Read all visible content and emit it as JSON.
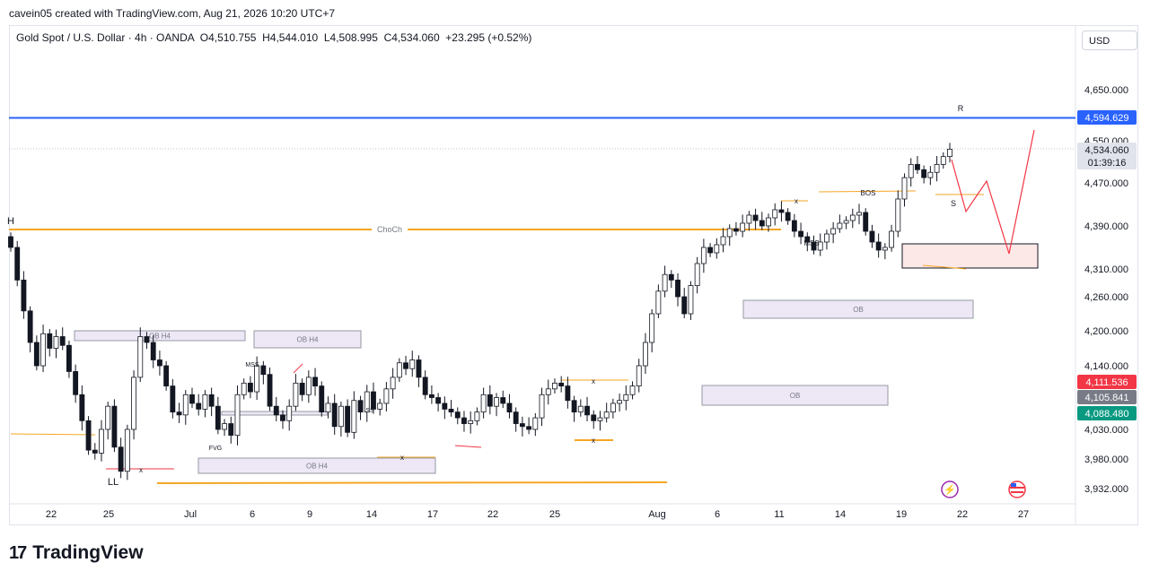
{
  "header": {
    "caption": "cavein05 created with TradingView.com, Aug 21, 2026 10:20 UTC+7",
    "legend": "Gold Spot / U.S. Dollar · 4h · OANDA  O4,510.755  H4,544.010  L4,508.995  C4,534.060  +23.295 (+0.52%)",
    "currency": "USD"
  },
  "footer": {
    "brand": "TradingView"
  },
  "chart_data": {
    "type": "candlestick",
    "title": "Gold Spot / U.S. Dollar · 4h · OANDA",
    "ohlc": {
      "open": 4510.755,
      "high": 4544.01,
      "low": 4508.995,
      "close": 4534.06,
      "change": "+23.295 (+0.52%)"
    },
    "y_ticks": [
      "4,650.000",
      "4,550.000",
      "4,470.000",
      "4,390.000",
      "4,310.000",
      "4,260.000",
      "4,200.000",
      "4,140.000",
      "4,030.000",
      "3,980.000",
      "3,932.000"
    ],
    "x_ticks": [
      "22",
      "25",
      "Jul",
      "6",
      "9",
      "14",
      "17",
      "22",
      "25",
      "Aug",
      "6",
      "11",
      "14",
      "19",
      "22",
      "27"
    ],
    "price_badges": [
      {
        "label": "4,594.629",
        "color": "#2962ff",
        "value": 4594.629
      },
      {
        "label": "4,534.060\n01:39:16",
        "color": "#e0e3eb",
        "value": 4534.06
      },
      {
        "label": "4,111.536",
        "color": "#f23645",
        "value": 4111.536
      },
      {
        "label": "4,105.841",
        "color": "#787b86",
        "value": 4105.841
      },
      {
        "label": "4,088.480",
        "color": "#089981",
        "value": 4088.48
      }
    ],
    "levels": [
      {
        "name": "resistance",
        "value": 4594.629,
        "color": "#2962ff"
      },
      {
        "name": "choch",
        "label": "ChoCh",
        "value": 4390,
        "color": "#f5a623"
      }
    ],
    "annotations": [
      "H",
      "LL",
      "R",
      "S",
      "BOS",
      "MSS",
      "MSS",
      "FVG",
      "SS",
      "x",
      "x",
      "x",
      "x",
      "x"
    ],
    "zones": [
      {
        "label": "OB H4"
      },
      {
        "label": "OB H4"
      },
      {
        "label": "OB H4"
      },
      {
        "label": "OB"
      },
      {
        "label": "OB"
      },
      {
        "label": ""
      }
    ],
    "series": [
      {
        "values": [
          4350,
          4290,
          4235,
          4180,
          4140,
          4195,
          4170,
          4190,
          4175,
          4130,
          4090,
          4045,
          3995,
          3990,
          4030,
          4070,
          4000,
          3960,
          4030,
          4120,
          4190,
          4180,
          4150,
          4140,
          4105,
          4060,
          4055,
          4090,
          4075,
          4065,
          4090,
          4070,
          4030,
          4040,
          4020,
          4090,
          4110,
          4095,
          4140,
          4125,
          4070,
          4055,
          4045,
          4070,
          4110,
          4090,
          4120,
          4105,
          4060,
          4075,
          4035,
          4070,
          4025,
          4080,
          4060,
          4095,
          4065,
          4075,
          4100,
          4120,
          4145,
          4135,
          4150,
          4120,
          4090,
          4085,
          4075,
          4065,
          4060,
          4050,
          4040,
          4045,
          4060,
          4090,
          4070,
          4085,
          4075,
          4060,
          4040,
          4035,
          4030,
          4050,
          4090,
          4100,
          4110,
          4105,
          4080,
          4060,
          4070,
          4055,
          4045,
          4050,
          4060,
          4075,
          4080,
          4090,
          4105,
          4140,
          4180,
          4230,
          4270,
          4300,
          4290,
          4260,
          4230,
          4280,
          4320,
          4350,
          4340,
          4355,
          4370,
          4385,
          4380,
          4395,
          4410,
          4400,
          4390,
          4405,
          4420,
          4415,
          4400,
          4380,
          4370,
          4360,
          4345,
          4360,
          4375,
          4385,
          4395,
          4400,
          4410,
          4415,
          4380,
          4360,
          4345,
          4350,
          4380,
          4440,
          4480,
          4505,
          4495,
          4480,
          4490,
          4505,
          4520,
          4534
        ]
      }
    ]
  }
}
